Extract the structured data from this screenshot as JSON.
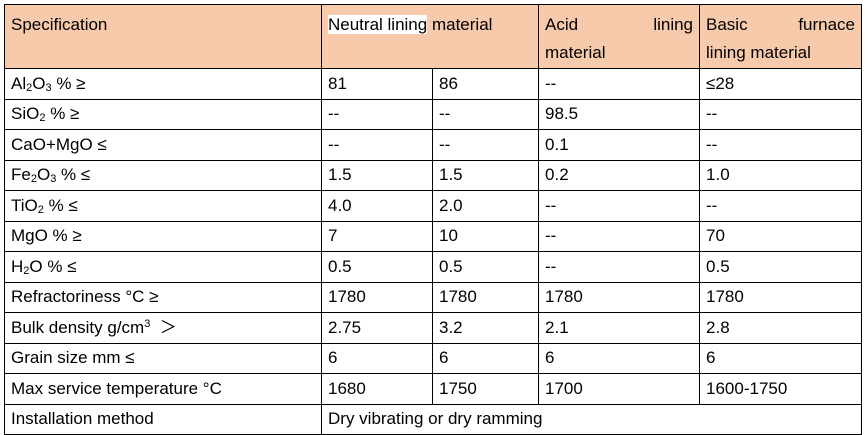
{
  "header": {
    "spec": "Specification",
    "neutral_hl": "Neutral lining",
    "neutral_rest": " material",
    "acid_w1": "Acid",
    "acid_w2": "lining",
    "acid_w3": "material",
    "basic_w1": "Basic",
    "basic_w2": "furnace",
    "basic_w3": "lining material"
  },
  "rows": [
    {
      "pre": "Al",
      "sub1": "2",
      "mid": "O",
      "sub2": "3",
      "post": " % ≥",
      "c1": "81",
      "c2": "86",
      "c3": "--",
      "c4": "≤28"
    },
    {
      "pre": "SiO",
      "sub1": "2",
      "post": " % ≥",
      "c1": "--",
      "c2": "--",
      "c3": "98.5",
      "c4": "--"
    },
    {
      "pre": "CaO+MgO ≤",
      "c1": "--",
      "c2": "--",
      "c3": "0.1",
      "c4": "--"
    },
    {
      "pre": "Fe",
      "sub1": "2",
      "mid": "O",
      "sub2": "3",
      "post": " % ≤",
      "c1": "1.5",
      "c2": "1.5",
      "c3": "0.2",
      "c4": "1.0"
    },
    {
      "pre": "TiO",
      "sub1": "2",
      "post": " % ≤",
      "c1": "4.0",
      "c2": "2.0",
      "c3": "--",
      "c4": "--"
    },
    {
      "pre": "MgO % ≥",
      "c1": "7",
      "c2": "10",
      "c3": "--",
      "c4": "70"
    },
    {
      "pre": "H",
      "sub1": "2",
      "post": "O % ≤",
      "c1": "0.5",
      "c2": "0.5",
      "c3": "--",
      "c4": "0.5"
    },
    {
      "pre": "Refractoriness °C ≥",
      "c1": "1780",
      "c2": "1780",
      "c3": "1780",
      "c4": "1780"
    },
    {
      "pre": "Bulk density g/cm",
      "sup": "3",
      "post": "  ＞",
      "c1": "2.75",
      "c2": "3.2",
      "c3": "2.1",
      "c4": "2.8"
    },
    {
      "pre": "Grain size mm ≤",
      "c1": "6",
      "c2": "6",
      "c3": "6",
      "c4": "6"
    },
    {
      "pre": "Max service temperature °C",
      "c1": "1680",
      "c2": "1750",
      "c3": "1700",
      "c4": "1600-1750"
    }
  ],
  "install": {
    "label": "Installation method",
    "value": "Dry vibrating or dry ramming"
  }
}
